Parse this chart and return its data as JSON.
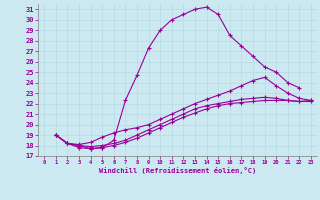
{
  "xlabel": "Windchill (Refroidissement éolien,°C)",
  "bg_color": "#cce8f0",
  "line_color": "#990099",
  "ylim": [
    17,
    31.5
  ],
  "xlim": [
    -0.5,
    23.5
  ],
  "yticks": [
    17,
    18,
    19,
    20,
    21,
    22,
    23,
    24,
    25,
    26,
    27,
    28,
    29,
    30,
    31
  ],
  "xticks": [
    0,
    1,
    2,
    3,
    4,
    5,
    6,
    7,
    8,
    9,
    10,
    11,
    12,
    13,
    14,
    15,
    16,
    17,
    18,
    19,
    20,
    21,
    22,
    23
  ],
  "lines": [
    {
      "x": [
        1,
        2,
        3,
        4,
        5,
        6,
        7,
        8,
        9,
        10,
        11,
        12,
        13,
        14,
        15,
        16,
        17,
        18,
        19,
        20,
        21,
        22
      ],
      "y": [
        19.0,
        18.2,
        18.0,
        17.7,
        17.8,
        18.5,
        22.3,
        24.7,
        27.3,
        29.0,
        30.0,
        30.5,
        31.0,
        31.2,
        30.5,
        28.5,
        27.5,
        26.5,
        25.5,
        25.0,
        24.0,
        23.5
      ]
    },
    {
      "x": [
        1,
        2,
        3,
        4,
        5,
        6,
        7,
        8,
        9,
        10,
        11,
        12,
        13,
        14,
        15,
        16,
        17,
        18,
        19,
        20,
        21,
        22,
        23
      ],
      "y": [
        19.0,
        18.2,
        18.1,
        18.3,
        18.8,
        19.2,
        19.5,
        19.7,
        20.0,
        20.5,
        21.0,
        21.5,
        22.0,
        22.4,
        22.8,
        23.2,
        23.7,
        24.2,
        24.5,
        23.7,
        23.0,
        22.5,
        22.3
      ]
    },
    {
      "x": [
        1,
        2,
        3,
        4,
        5,
        6,
        7,
        8,
        9,
        10,
        11,
        12,
        13,
        14,
        15,
        16,
        17,
        18,
        19,
        20,
        21,
        22,
        23
      ],
      "y": [
        19.0,
        18.2,
        18.0,
        17.9,
        18.0,
        18.2,
        18.5,
        19.0,
        19.5,
        20.0,
        20.5,
        21.0,
        21.5,
        21.8,
        22.0,
        22.2,
        22.4,
        22.5,
        22.6,
        22.5,
        22.3,
        22.2,
        22.3
      ]
    },
    {
      "x": [
        1,
        2,
        3,
        4,
        5,
        6,
        7,
        8,
        9,
        10,
        11,
        12,
        13,
        14,
        15,
        16,
        17,
        18,
        19,
        20,
        21,
        22,
        23
      ],
      "y": [
        19.0,
        18.2,
        17.8,
        17.7,
        17.8,
        18.0,
        18.3,
        18.7,
        19.2,
        19.7,
        20.2,
        20.7,
        21.1,
        21.5,
        21.8,
        22.0,
        22.1,
        22.2,
        22.3,
        22.3,
        22.3,
        22.2,
        22.2
      ]
    }
  ]
}
